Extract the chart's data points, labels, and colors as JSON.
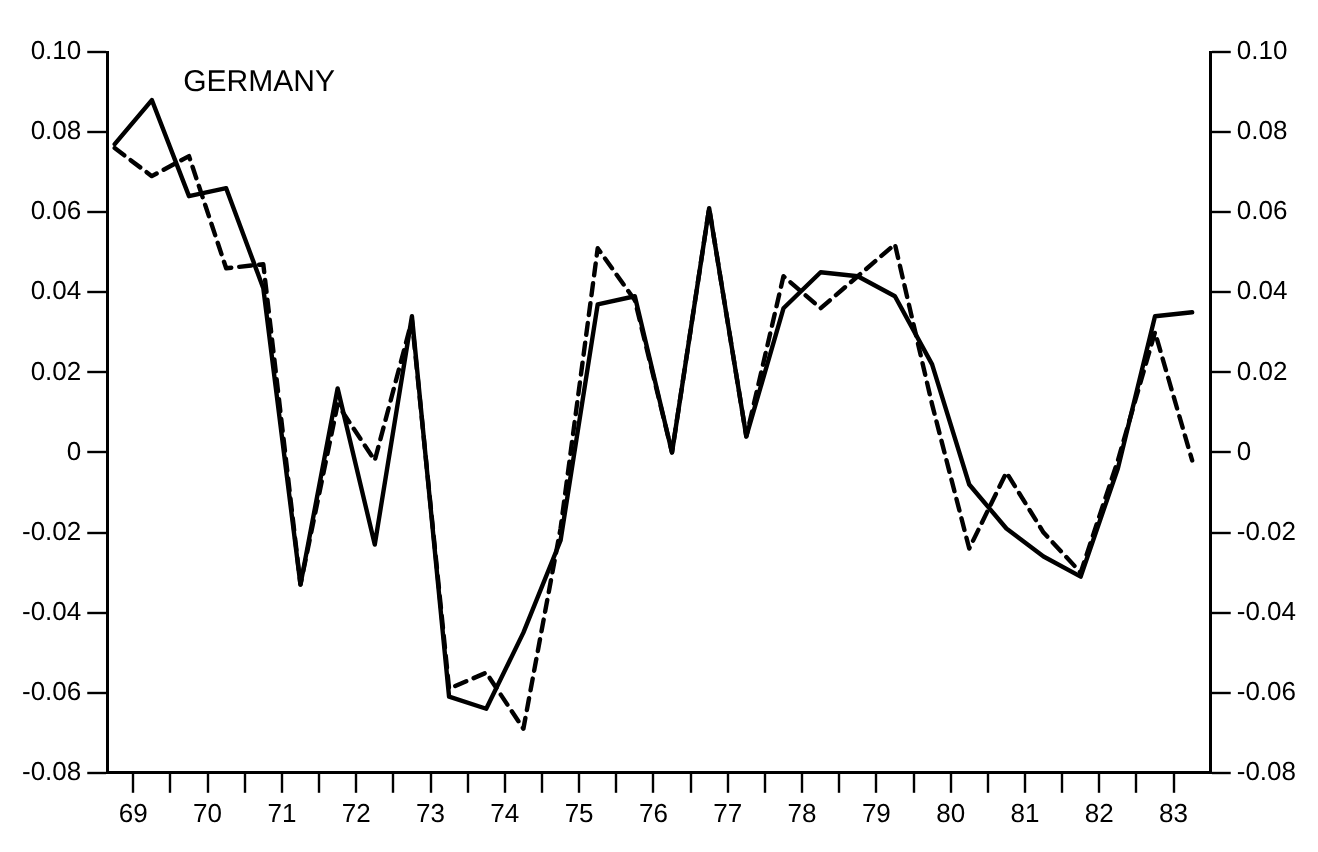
{
  "chart_data": {
    "type": "line",
    "title": "GERMANY",
    "x": [
      69.25,
      69.75,
      70.25,
      70.75,
      71.25,
      71.75,
      72.25,
      72.75,
      73.25,
      73.75,
      74.25,
      74.75,
      75.25,
      75.75,
      76.25,
      76.75,
      77.25,
      77.75,
      78.25,
      78.75,
      79.25,
      79.75,
      80.25,
      80.75,
      81.25,
      81.75,
      82.25,
      82.75,
      83.25,
      83.75
    ],
    "series": [
      {
        "color": "#000000",
        "line_style": "solid",
        "values": [
          0.077,
          0.088,
          0.064,
          0.066,
          0.041,
          -0.033,
          0.016,
          -0.023,
          0.034,
          -0.061,
          -0.064,
          -0.045,
          -0.022,
          0.037,
          0.039,
          0.0,
          0.061,
          0.004,
          0.036,
          0.045,
          0.044,
          0.039,
          0.022,
          -0.008,
          -0.019,
          -0.026,
          -0.031,
          -0.004,
          0.034,
          0.035
        ]
      },
      {
        "color": "#000000",
        "line_style": "dashed",
        "values": [
          0.076,
          0.069,
          0.074,
          0.046,
          0.047,
          -0.033,
          0.012,
          -0.002,
          0.033,
          -0.059,
          -0.055,
          -0.069,
          -0.019,
          0.051,
          0.038,
          0.0,
          0.061,
          0.004,
          0.044,
          0.036,
          0.044,
          0.052,
          0.012,
          -0.024,
          -0.005,
          -0.02,
          -0.03,
          -0.002,
          0.03,
          -0.002
        ]
      }
    ],
    "xlim": [
      69.15,
      84
    ],
    "xticks": [
      {
        "value": 69.5,
        "label": "69"
      },
      {
        "value": 70,
        "label": null
      },
      {
        "value": 70.5,
        "label": "70"
      },
      {
        "value": 71,
        "label": null
      },
      {
        "value": 71.5,
        "label": "71"
      },
      {
        "value": 72,
        "label": null
      },
      {
        "value": 72.5,
        "label": "72"
      },
      {
        "value": 73,
        "label": null
      },
      {
        "value": 73.5,
        "label": "73"
      },
      {
        "value": 74,
        "label": null
      },
      {
        "value": 74.5,
        "label": "74"
      },
      {
        "value": 75,
        "label": null
      },
      {
        "value": 75.5,
        "label": "75"
      },
      {
        "value": 76,
        "label": null
      },
      {
        "value": 76.5,
        "label": "76"
      },
      {
        "value": 77,
        "label": null
      },
      {
        "value": 77.5,
        "label": "77"
      },
      {
        "value": 78,
        "label": null
      },
      {
        "value": 78.5,
        "label": "78"
      },
      {
        "value": 79,
        "label": null
      },
      {
        "value": 79.5,
        "label": "79"
      },
      {
        "value": 80,
        "label": null
      },
      {
        "value": 80.5,
        "label": "80"
      },
      {
        "value": 81,
        "label": null
      },
      {
        "value": 81.5,
        "label": "81"
      },
      {
        "value": 82,
        "label": null
      },
      {
        "value": 82.5,
        "label": "82"
      },
      {
        "value": 83,
        "label": null
      },
      {
        "value": 83.5,
        "label": "83"
      }
    ],
    "ylim": [
      -0.08,
      0.1
    ],
    "yticks": [
      {
        "value": -0.08,
        "label": "-0.08"
      },
      {
        "value": -0.06,
        "label": "-0.06"
      },
      {
        "value": -0.04,
        "label": "-0.04"
      },
      {
        "value": -0.02,
        "label": "-0.02"
      },
      0,
      {
        "value": 0.02,
        "label": "0.02"
      },
      {
        "value": 0.04,
        "label": "0.04"
      },
      {
        "value": 0.06,
        "label": "0.06"
      },
      {
        "value": 0.08,
        "label": "0.08"
      },
      {
        "value": 0.1,
        "label": "0.10"
      }
    ],
    "y2lim": [
      -0.08,
      0.1
    ],
    "y2ticks": [
      {
        "value": -0.08,
        "label": "-0.08"
      },
      {
        "value": -0.06,
        "label": "-0.06"
      },
      {
        "value": -0.04,
        "label": "-0.04"
      },
      {
        "value": -0.02,
        "label": "-0.02"
      },
      0,
      {
        "value": 0.02,
        "label": "0.02"
      },
      {
        "value": 0.04,
        "label": "0.04"
      },
      {
        "value": 0.06,
        "label": "0.06"
      },
      {
        "value": 0.08,
        "label": "0.08"
      },
      {
        "value": 0.1,
        "label": "0.10"
      }
    ],
    "grid": false,
    "legend": false,
    "marker": "none"
  }
}
